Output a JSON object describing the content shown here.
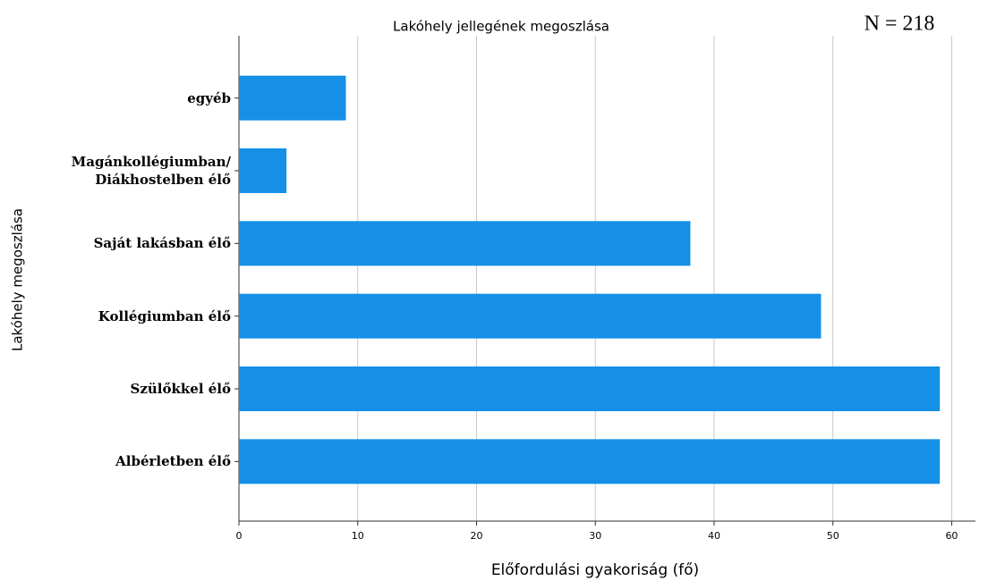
{
  "chart_data": {
    "type": "hbar",
    "title": "Lakóhely jellegének megoszlása",
    "annotation": "N = 218",
    "x_label": "Előfordulási gyakoriság (fő)",
    "y_label": "Lakóhely megoszlása",
    "categories": [
      "egyéb",
      "Magánkollégiumban/\nDiákhostelben élő",
      "Saját lakásban élő",
      "Kollégiumban élő",
      "Szülőkkel élő",
      "Albérletben élő"
    ],
    "values": [
      9,
      4,
      38,
      49,
      59,
      59
    ],
    "color": "#1590e6",
    "xlim": [
      0,
      62
    ],
    "xticks": [
      0,
      10,
      20,
      30,
      40,
      50,
      60
    ],
    "grid": true
  }
}
